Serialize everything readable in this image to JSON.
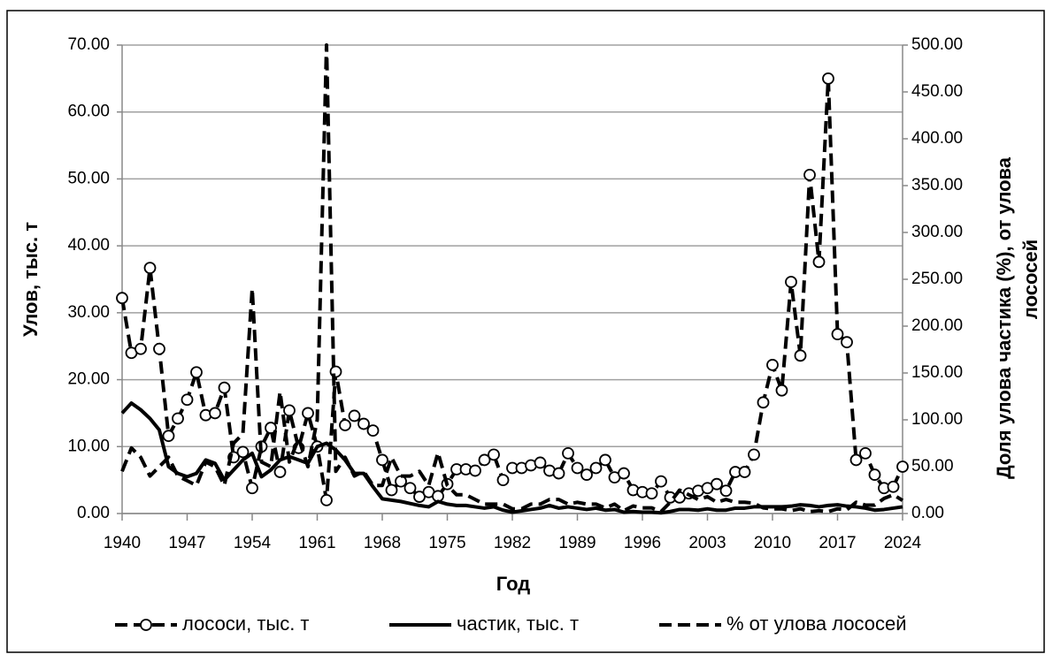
{
  "chart_data": {
    "type": "line",
    "x_label": "Год",
    "y_label": "Улов, тыс. т",
    "y2_label": [
      "Доля улова частика (%), от улова",
      "лососей"
    ],
    "x": [
      1940,
      1941,
      1942,
      1943,
      1944,
      1945,
      1946,
      1947,
      1948,
      1949,
      1950,
      1951,
      1952,
      1953,
      1954,
      1955,
      1956,
      1957,
      1958,
      1959,
      1960,
      1961,
      1962,
      1963,
      1964,
      1965,
      1966,
      1967,
      1968,
      1969,
      1970,
      1971,
      1972,
      1973,
      1974,
      1975,
      1976,
      1977,
      1978,
      1979,
      1980,
      1981,
      1982,
      1983,
      1984,
      1985,
      1986,
      1987,
      1988,
      1989,
      1990,
      1991,
      1992,
      1993,
      1994,
      1995,
      1996,
      1997,
      1998,
      1999,
      2000,
      2001,
      2002,
      2003,
      2004,
      2005,
      2006,
      2007,
      2008,
      2009,
      2010,
      2011,
      2012,
      2013,
      2014,
      2015,
      2016,
      2017,
      2018,
      2019,
      2020,
      2021,
      2022,
      2023,
      2024
    ],
    "xlim": [
      1940,
      2024
    ],
    "xticks": [
      1940,
      1947,
      1954,
      1961,
      1968,
      1975,
      1982,
      1989,
      1996,
      2003,
      2010,
      2017,
      2024
    ],
    "ylim": [
      0,
      70
    ],
    "yticks": [
      {
        "value": 0,
        "label": "0.00"
      },
      {
        "value": 10,
        "label": "10.00"
      },
      {
        "value": 20,
        "label": "20.00"
      },
      {
        "value": 30,
        "label": "30.00"
      },
      {
        "value": 40,
        "label": "40.00"
      },
      {
        "value": 50,
        "label": "50.00"
      },
      {
        "value": 60,
        "label": "60.00"
      },
      {
        "value": 70,
        "label": "70.00"
      }
    ],
    "y2lim": [
      0,
      500
    ],
    "y2ticks": [
      {
        "value": 0,
        "label": "0.00"
      },
      {
        "value": 50,
        "label": "50.00"
      },
      {
        "value": 100,
        "label": "100.00"
      },
      {
        "value": 150,
        "label": "150.00"
      },
      {
        "value": 200,
        "label": "200.00"
      },
      {
        "value": 250,
        "label": "250.00"
      },
      {
        "value": 300,
        "label": "300.00"
      },
      {
        "value": 350,
        "label": "350.00"
      },
      {
        "value": 400,
        "label": "400.00"
      },
      {
        "value": 450,
        "label": "450.00"
      },
      {
        "value": 500,
        "label": "500.00"
      }
    ],
    "grid": true,
    "legend": "bottom",
    "series": [
      {
        "name": "лососи, тыс. т",
        "color": "#000000",
        "style": "dashed",
        "marker": "circle",
        "axis": "y",
        "values": [
          32.2,
          24.0,
          24.6,
          36.7,
          24.6,
          11.6,
          14.2,
          17.0,
          21.1,
          14.7,
          15.0,
          18.8,
          8.4,
          9.2,
          3.8,
          10.0,
          12.8,
          6.2,
          15.4,
          9.8,
          15.0,
          10.0,
          2.0,
          21.2,
          13.2,
          14.6,
          13.4,
          12.4,
          8.0,
          3.5,
          4.8,
          3.8,
          2.5,
          3.2,
          2.6,
          4.4,
          6.6,
          6.6,
          6.4,
          8.0,
          8.8,
          5.0,
          6.8,
          6.8,
          7.2,
          7.6,
          6.4,
          6.0,
          9.0,
          6.8,
          5.8,
          6.8,
          8.0,
          5.4,
          6.0,
          3.5,
          3.2,
          3.0,
          4.8,
          2.4,
          2.4,
          3.0,
          3.4,
          3.8,
          4.4,
          3.4,
          6.2,
          6.2,
          8.8,
          16.6,
          22.2,
          18.4,
          34.6,
          23.6,
          50.6,
          37.6,
          65.0,
          26.8,
          25.6,
          8.0,
          9.0,
          5.8,
          3.8,
          4.0,
          7.0
        ]
      },
      {
        "name": "частик, тыс. т",
        "color": "#000000",
        "style": "solid",
        "axis": "y",
        "values": [
          15.0,
          16.5,
          15.5,
          14.2,
          12.5,
          7.0,
          6.0,
          5.5,
          6.0,
          8.0,
          7.5,
          5.0,
          6.5,
          8.0,
          9.0,
          5.5,
          6.5,
          8.0,
          8.5,
          8.0,
          7.5,
          10.0,
          10.5,
          9.5,
          8.0,
          6.0,
          6.0,
          4.0,
          2.2,
          2.0,
          1.8,
          1.5,
          1.2,
          1.0,
          1.8,
          1.4,
          1.2,
          1.2,
          1.0,
          0.8,
          1.0,
          0.5,
          0.2,
          0.4,
          0.6,
          0.8,
          1.2,
          0.8,
          1.0,
          0.8,
          0.6,
          0.8,
          0.5,
          0.6,
          0.2,
          0.3,
          0.2,
          0.2,
          0.1,
          0.3,
          0.6,
          0.6,
          0.5,
          0.7,
          0.5,
          0.5,
          0.8,
          0.8,
          1.0,
          1.0,
          1.0,
          1.0,
          1.1,
          1.3,
          1.2,
          1.0,
          1.2,
          1.3,
          1.1,
          1.0,
          0.8,
          0.5,
          0.6,
          0.8,
          1.0
        ]
      },
      {
        "name": "% от улова лососей",
        "color": "#000000",
        "style": "dashed",
        "axis": "y2",
        "values": [
          45,
          70,
          60,
          40,
          50,
          60,
          40,
          35,
          30,
          55,
          50,
          30,
          75,
          85,
          240,
          55,
          50,
          130,
          55,
          80,
          50,
          100,
          500,
          45,
          60,
          40,
          45,
          30,
          30,
          60,
          40,
          40,
          45,
          30,
          65,
          30,
          20,
          20,
          15,
          10,
          10,
          10,
          5,
          5,
          10,
          10,
          15,
          15,
          10,
          12,
          10,
          10,
          6,
          10,
          3,
          8,
          6,
          6,
          2,
          12,
          25,
          20,
          15,
          18,
          12,
          15,
          12,
          12,
          11,
          6,
          5,
          5,
          3,
          5,
          2,
          3,
          2,
          5,
          4,
          12,
          9,
          9,
          16,
          20,
          14
        ]
      }
    ]
  }
}
